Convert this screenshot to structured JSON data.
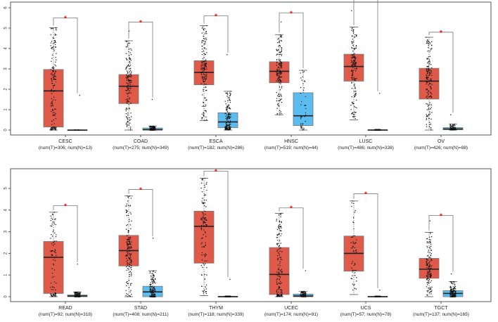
{
  "chart_data": [
    {
      "type": "box",
      "ylim": [
        0,
        6
      ],
      "yticks": [
        "0",
        "1",
        "2",
        "3",
        "4",
        "5",
        "6"
      ],
      "colors": {
        "tumor": "#e05a4a",
        "normal": "#5bbcf0",
        "significance": "#ff0000"
      },
      "significance_mark": "*",
      "groups": [
        {
          "name": "CESC",
          "sub": "(num(T)=306; num(N)=13)",
          "nT": 306,
          "nN": 13,
          "sig": 5.5,
          "tumor": {
            "q1": 0.15,
            "med": 1.92,
            "q3": 2.97,
            "lo": 0,
            "hi": 5.02,
            "max": 5.02
          },
          "normal": {
            "q1": 0,
            "med": 0,
            "q3": 0.01,
            "lo": 0,
            "hi": 0.01,
            "max": 1.7
          }
        },
        {
          "name": "COAD",
          "sub": "(num(T)=275; num(N)=349)",
          "nT": 275,
          "nN": 349,
          "sig": 5.3,
          "tumor": {
            "q1": 1.3,
            "med": 2.15,
            "q3": 2.72,
            "lo": 0,
            "hi": 4.38,
            "max": 4.85
          },
          "normal": {
            "q1": 0,
            "med": 0.02,
            "q3": 0.1,
            "lo": 0,
            "hi": 0.2,
            "max": 1.5
          }
        },
        {
          "name": "ESCA",
          "sub": "(num(T)=182; num(N)=286)",
          "nT": 182,
          "nN": 286,
          "sig": 5.6,
          "tumor": {
            "q1": 2.22,
            "med": 2.83,
            "q3": 3.4,
            "lo": 0.47,
            "hi": 5.12,
            "max": 5.12
          },
          "normal": {
            "q1": 0.12,
            "med": 0.4,
            "q3": 0.85,
            "lo": 0,
            "hi": 1.9,
            "max": 3.7
          }
        },
        {
          "name": "HNSC",
          "sub": "(num(T)=519; num(N)=44)",
          "nT": 519,
          "nN": 44,
          "sig": 5.75,
          "tumor": {
            "q1": 2.32,
            "med": 2.88,
            "q3": 3.35,
            "lo": 0.75,
            "hi": 4.68,
            "max": 5.3
          },
          "normal": {
            "q1": 0.22,
            "med": 0.7,
            "q3": 1.83,
            "lo": 0,
            "hi": 2.93,
            "max": 2.93
          }
        },
        {
          "name": "LUSC",
          "sub": "(num(T)=486; num(N)=338)",
          "nT": 486,
          "nN": 338,
          "sig": 6.4,
          "tumor": {
            "q1": 2.4,
            "med": 3.12,
            "q3": 3.72,
            "lo": 0.5,
            "hi": 5.05,
            "max": 5.85
          },
          "normal": {
            "q1": 0,
            "med": 0,
            "q3": 0.02,
            "lo": 0,
            "hi": 0.02,
            "max": 1.8
          }
        },
        {
          "name": "OV",
          "sub": "(num(T)=426; num(N)=88)",
          "nT": 426,
          "nN": 88,
          "sig": 4.8,
          "tumor": {
            "q1": 1.52,
            "med": 2.4,
            "q3": 3.03,
            "lo": 0,
            "hi": 4.55,
            "max": 4.55
          },
          "normal": {
            "q1": 0.02,
            "med": 0.05,
            "q3": 0.12,
            "lo": 0,
            "hi": 0.3,
            "max": 0.75
          }
        }
      ]
    },
    {
      "type": "box",
      "ylim": [
        0,
        5.9
      ],
      "yticks": [
        "0",
        "1",
        "2",
        "3",
        "4",
        "5"
      ],
      "colors": {
        "tumor": "#e05a4a",
        "normal": "#5bbcf0",
        "significance": "#ff0000"
      },
      "significance_mark": "*",
      "groups": [
        {
          "name": "READ",
          "sub": "(num(T)=92; num(N)=318)",
          "nT": 92,
          "nN": 318,
          "sig": 4.2,
          "tumor": {
            "q1": 0.15,
            "med": 1.82,
            "q3": 2.55,
            "lo": 0,
            "hi": 3.9,
            "max": 3.9
          },
          "normal": {
            "q1": 0,
            "med": 0.03,
            "q3": 0.08,
            "lo": 0,
            "hi": 0.22,
            "max": 1.5
          }
        },
        {
          "name": "STAD",
          "sub": "(num(T)=408; num(N)=211)",
          "nT": 408,
          "nN": 211,
          "sig": 4.95,
          "tumor": {
            "q1": 1.42,
            "med": 2.13,
            "q3": 2.83,
            "lo": 0,
            "hi": 4.65,
            "max": 4.65
          },
          "normal": {
            "q1": 0,
            "med": 0.22,
            "q3": 0.48,
            "lo": 0,
            "hi": 1.2,
            "max": 2.7
          }
        },
        {
          "name": "THYM",
          "sub": "(num(T)=118; num(N)=339)",
          "nT": 118,
          "nN": 339,
          "sig": 5.8,
          "tumor": {
            "q1": 1.55,
            "med": 3.25,
            "q3": 3.95,
            "lo": 0.05,
            "hi": 5.47,
            "max": 5.47
          },
          "normal": {
            "q1": 0,
            "med": 0,
            "q3": 0.02,
            "lo": 0,
            "hi": 0.02,
            "max": 0.8
          }
        },
        {
          "name": "UCEC",
          "sub": "(num(T)=174; num(N)=91)",
          "nT": 174,
          "nN": 91,
          "sig": 4.1,
          "tumor": {
            "q1": 0.1,
            "med": 1.03,
            "q3": 2.27,
            "lo": 0,
            "hi": 3.85,
            "max": 3.85
          },
          "normal": {
            "q1": 0,
            "med": 0.03,
            "q3": 0.12,
            "lo": 0,
            "hi": 0.25,
            "max": 1.2
          }
        },
        {
          "name": "UCS",
          "sub": "(num(T)=57; num(N)=78)",
          "nT": 57,
          "nN": 78,
          "sig": 4.75,
          "tumor": {
            "q1": 1.18,
            "med": 2.0,
            "q3": 2.8,
            "lo": 0.1,
            "hi": 4.42,
            "max": 4.42
          },
          "normal": {
            "q1": 0,
            "med": 0,
            "q3": 0.02,
            "lo": 0,
            "hi": 0.02,
            "max": 0.3
          }
        },
        {
          "name": "TGCT",
          "sub": "(num(T)=137; num(N)=165)",
          "nT": 137,
          "nN": 165,
          "sig": 3.75,
          "tumor": {
            "q1": 0.85,
            "med": 1.27,
            "q3": 1.77,
            "lo": 0,
            "hi": 2.97,
            "max": 3.5
          },
          "normal": {
            "q1": 0,
            "med": 0.15,
            "q3": 0.28,
            "lo": 0,
            "hi": 0.7,
            "max": 1.05
          }
        }
      ]
    }
  ]
}
